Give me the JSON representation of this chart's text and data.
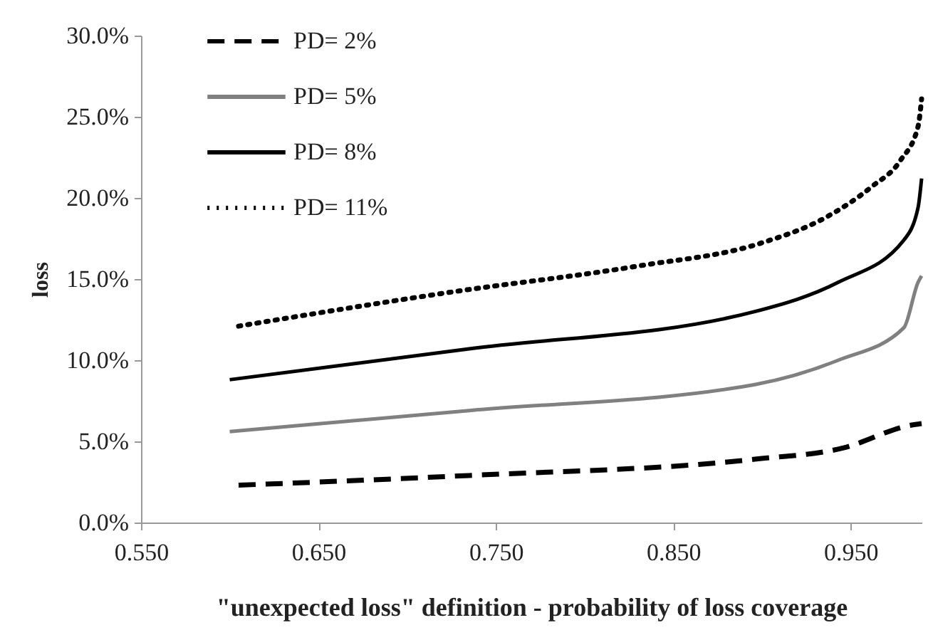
{
  "chart_data": {
    "type": "line",
    "xlabel": "\"unexpected loss\" definition  - probability  of loss coverage",
    "ylabel": "loss",
    "xlim": [
      0.55,
      0.99
    ],
    "ylim": [
      0,
      30
    ],
    "xticks": [
      {
        "value": 0.55,
        "label": "0.550"
      },
      {
        "value": 0.65,
        "label": "0.650"
      },
      {
        "value": 0.75,
        "label": "0.750"
      },
      {
        "value": 0.85,
        "label": "0.850"
      },
      {
        "value": 0.95,
        "label": "0.950"
      }
    ],
    "yticks": [
      {
        "value": 0,
        "label": "0.0%"
      },
      {
        "value": 5,
        "label": "5.0%"
      },
      {
        "value": 10,
        "label": "10.0%"
      },
      {
        "value": 15,
        "label": "15.0%"
      },
      {
        "value": 20,
        "label": "20.0%"
      },
      {
        "value": 25,
        "label": "25.0%"
      },
      {
        "value": 30,
        "label": "30.0%"
      }
    ],
    "grid": false,
    "legend": "top left",
    "marker": "none",
    "series": [
      {
        "name": "PD= 2%",
        "color": "#000000",
        "line_style": "dashed",
        "x": [
          0.605,
          0.735,
          0.896,
          0.946,
          0.984,
          0.99
        ],
        "values": [
          2.3,
          2.9,
          3.9,
          4.6,
          6.0,
          6.1
        ]
      },
      {
        "name": "PD= 5%",
        "color": "#808080",
        "line_style": "solid",
        "x": [
          0.6,
          0.735,
          0.896,
          0.943,
          0.98,
          0.988,
          0.99
        ],
        "values": [
          5.6,
          6.9,
          8.5,
          10.0,
          12.0,
          14.8,
          15.2
        ]
      },
      {
        "name": "PD= 8%",
        "color": "#000000",
        "line_style": "solid",
        "x": [
          0.6,
          0.735,
          0.896,
          0.943,
          0.98,
          0.988,
          0.99
        ],
        "values": [
          8.8,
          10.7,
          13.0,
          14.8,
          17.4,
          19.4,
          21.2
        ]
      },
      {
        "name": "PD= 11%",
        "color": "#000000",
        "line_style": "dotted",
        "x": [
          0.605,
          0.725,
          0.83,
          0.899,
          0.936,
          0.962,
          0.978,
          0.988,
          0.99
        ],
        "values": [
          12.1,
          14.2,
          15.8,
          17.2,
          18.8,
          20.7,
          22.3,
          24.4,
          26.1
        ]
      }
    ]
  }
}
